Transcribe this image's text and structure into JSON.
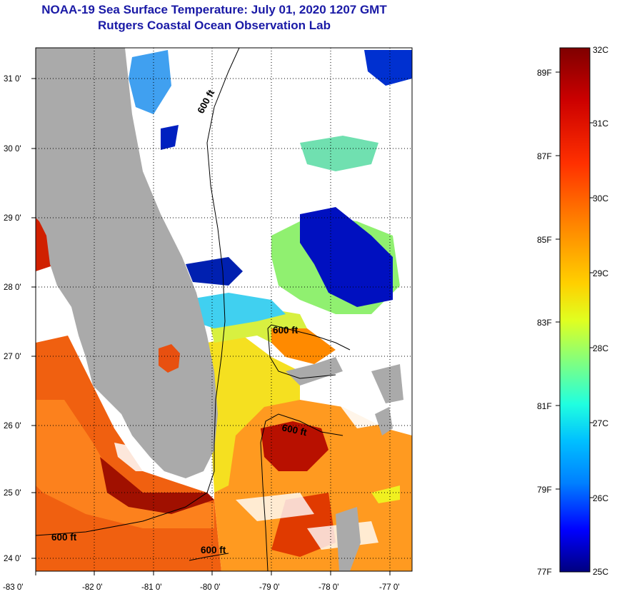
{
  "title": {
    "line1": "NOAA-19 Sea Surface Temperature:  July 01, 2020 1207 GMT",
    "line2": "Rutgers Coastal Ocean Observation Lab"
  },
  "map": {
    "longitude_labels": [
      "-83 0'",
      "-82 0'",
      "-81 0'",
      "-80 0'",
      "-79 0'",
      "-78 0'",
      "-77 0'"
    ],
    "latitude_labels": [
      "31 0'",
      "30 0'",
      "29 0'",
      "28 0'",
      "27 0'",
      "26 0'",
      "25 0'",
      "24 0'"
    ],
    "contour_label": "600 ft",
    "colors": {
      "land": "#aaaaaa",
      "cloud": "#ffffff",
      "frame": "#000000"
    }
  },
  "colorbar": {
    "celsius_labels": [
      "32C",
      "31C",
      "30C",
      "29C",
      "28C",
      "27C",
      "26C",
      "25C"
    ],
    "fahrenheit_labels": [
      "89F",
      "87F",
      "85F",
      "83F",
      "81F",
      "79F",
      "77F"
    ],
    "colormap": [
      "#7f0000",
      "#ff0000",
      "#ff8000",
      "#ffff00",
      "#80ff80",
      "#00ffff",
      "#0080ff",
      "#0000ff",
      "#00007f"
    ]
  }
}
